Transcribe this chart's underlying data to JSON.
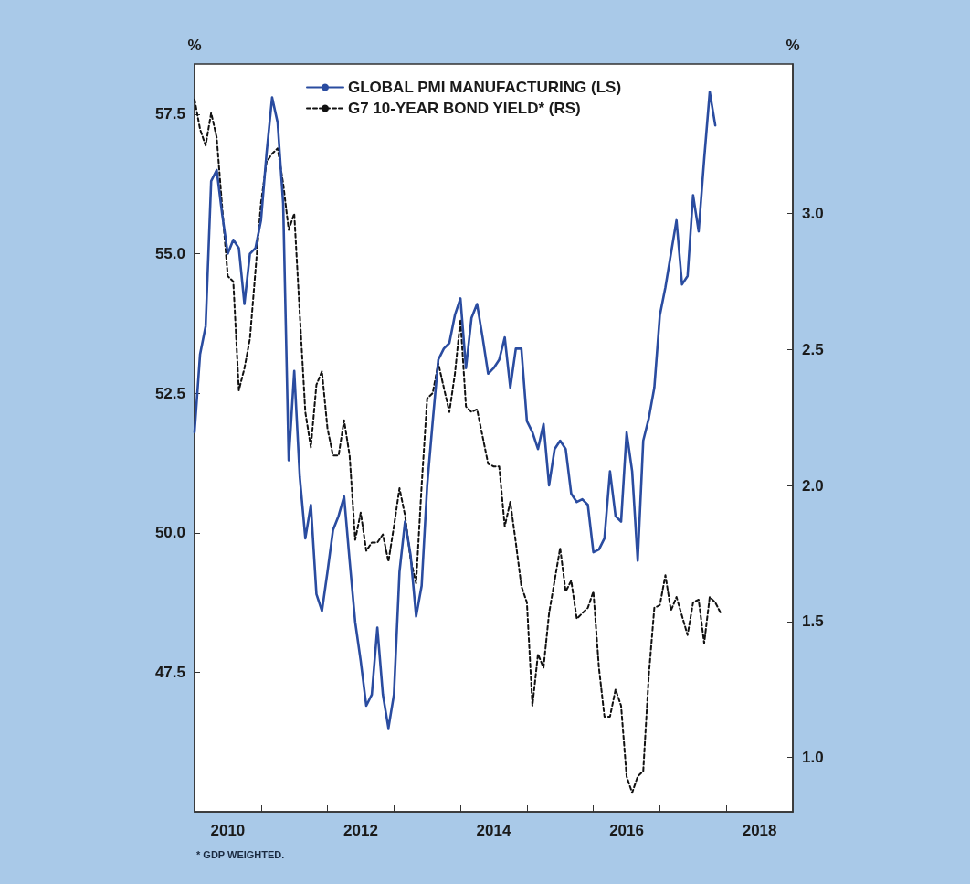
{
  "chart_data": {
    "type": "line",
    "x": [
      "2010-01",
      "2010-02",
      "2010-03",
      "2010-04",
      "2010-05",
      "2010-06",
      "2010-07",
      "2010-08",
      "2010-09",
      "2010-10",
      "2010-11",
      "2010-12",
      "2011-01",
      "2011-02",
      "2011-03",
      "2011-04",
      "2011-05",
      "2011-06",
      "2011-07",
      "2011-08",
      "2011-09",
      "2011-10",
      "2011-11",
      "2011-12",
      "2012-01",
      "2012-02",
      "2012-03",
      "2012-04",
      "2012-05",
      "2012-06",
      "2012-07",
      "2012-08",
      "2012-09",
      "2012-10",
      "2012-11",
      "2012-12",
      "2013-01",
      "2013-02",
      "2013-03",
      "2013-04",
      "2013-05",
      "2013-06",
      "2013-07",
      "2013-08",
      "2013-09",
      "2013-10",
      "2013-11",
      "2013-12",
      "2014-01",
      "2014-02",
      "2014-03",
      "2014-04",
      "2014-05",
      "2014-06",
      "2014-07",
      "2014-08",
      "2014-09",
      "2014-10",
      "2014-11",
      "2014-12",
      "2015-01",
      "2015-02",
      "2015-03",
      "2015-04",
      "2015-05",
      "2015-06",
      "2015-07",
      "2015-08",
      "2015-09",
      "2015-10",
      "2015-11",
      "2015-12",
      "2016-01",
      "2016-02",
      "2016-03",
      "2016-04",
      "2016-05",
      "2016-06",
      "2016-07",
      "2016-08",
      "2016-09",
      "2016-10",
      "2016-11",
      "2016-12",
      "2017-01",
      "2017-02",
      "2017-03",
      "2017-04",
      "2017-05",
      "2017-06",
      "2017-07",
      "2017-08",
      "2017-09",
      "2017-10",
      "2017-11",
      "2017-12"
    ],
    "series": [
      {
        "name": "GLOBAL PMI MANUFACTURING (LS)",
        "color": "#2a4ca0",
        "line_style": "solid",
        "values": [
          51.8,
          53.2,
          53.7,
          56.3,
          56.5,
          55.7,
          55.0,
          55.25,
          55.1,
          54.1,
          55.0,
          55.1,
          55.6,
          56.8,
          57.8,
          57.35,
          55.9,
          51.3,
          52.9,
          51.0,
          49.9,
          50.5,
          48.9,
          48.6,
          49.3,
          50.05,
          50.3,
          50.65,
          49.5,
          48.4,
          47.7,
          46.9,
          47.1,
          48.3,
          47.1,
          46.5,
          47.1,
          49.3,
          50.2,
          49.6,
          48.5,
          49.05,
          50.85,
          52.0,
          53.1,
          53.3,
          53.4,
          53.9,
          54.2,
          52.95,
          53.85,
          54.1,
          53.5,
          52.85,
          52.95,
          53.1,
          53.5,
          52.6,
          53.3,
          53.3,
          52.0,
          51.8,
          51.5,
          51.95,
          50.85,
          51.5,
          51.65,
          51.5,
          50.7,
          50.55,
          50.6,
          50.5,
          49.65,
          49.7,
          49.9,
          51.1,
          50.3,
          50.2,
          51.8,
          51.1,
          49.5,
          51.65,
          52.05,
          52.6,
          53.9,
          54.4,
          55.0,
          55.6,
          54.45,
          54.6,
          56.05,
          55.4,
          56.7,
          57.9,
          57.3,
          null
        ]
      },
      {
        "name": "G7 10-YEAR BOND YIELD* (RS)",
        "color": "#111111",
        "line_style": "dashed",
        "axis": "y2",
        "values": [
          3.42,
          3.31,
          3.25,
          3.37,
          3.28,
          3.02,
          2.77,
          2.75,
          2.35,
          2.43,
          2.54,
          2.79,
          3.04,
          3.19,
          3.22,
          3.24,
          3.11,
          2.94,
          3.0,
          2.63,
          2.27,
          2.14,
          2.37,
          2.42,
          2.21,
          2.11,
          2.11,
          2.24,
          2.11,
          1.8,
          1.9,
          1.76,
          1.79,
          1.79,
          1.82,
          1.72,
          1.85,
          1.99,
          1.89,
          1.73,
          1.64,
          2.0,
          2.32,
          2.34,
          2.45,
          2.36,
          2.27,
          2.41,
          2.61,
          2.29,
          2.27,
          2.28,
          2.18,
          2.08,
          2.07,
          2.07,
          1.85,
          1.94,
          1.79,
          1.63,
          1.57,
          1.19,
          1.38,
          1.33,
          1.53,
          1.65,
          1.77,
          1.61,
          1.65,
          1.51,
          1.53,
          1.55,
          1.61,
          1.33,
          1.15,
          1.15,
          1.25,
          1.19,
          0.93,
          0.87,
          0.93,
          0.95,
          1.3,
          1.55,
          1.56,
          1.67,
          1.54,
          1.59,
          1.52,
          1.45,
          1.57,
          1.58,
          1.42,
          1.59,
          1.57,
          1.53
        ]
      }
    ],
    "ylabel": "%",
    "y2label": "%",
    "xlim": [
      "2010-01",
      "2019-01"
    ],
    "xticks": [
      {
        "value": "2010-07",
        "label": "2010"
      },
      {
        "value": "2011-01",
        "label": null
      },
      {
        "value": "2012-01",
        "label": null
      },
      {
        "value": "2012-07",
        "label": "2012"
      },
      {
        "value": "2013-01",
        "label": null
      },
      {
        "value": "2014-01",
        "label": null
      },
      {
        "value": "2014-07",
        "label": "2014"
      },
      {
        "value": "2015-01",
        "label": null
      },
      {
        "value": "2016-01",
        "label": null
      },
      {
        "value": "2016-07",
        "label": "2016"
      },
      {
        "value": "2017-01",
        "label": null
      },
      {
        "value": "2018-01",
        "label": null
      },
      {
        "value": "2018-07",
        "label": "2018"
      }
    ],
    "ylim": [
      45.0,
      58.4
    ],
    "yticks": [
      {
        "value": 47.5,
        "label": "47.5"
      },
      {
        "value": 50,
        "label": "50.0"
      },
      {
        "value": 52.5,
        "label": "52.5"
      },
      {
        "value": 55,
        "label": "55.0"
      },
      {
        "value": 57.5,
        "label": "57.5"
      }
    ],
    "y2lim": [
      0.8,
      3.55
    ],
    "y2ticks": [
      {
        "value": 1,
        "label": "1.0"
      },
      {
        "value": 1.5,
        "label": "1.5"
      },
      {
        "value": 2,
        "label": "2.0"
      },
      {
        "value": 2.5,
        "label": "2.5"
      },
      {
        "value": 3,
        "label": "3.0"
      }
    ],
    "legend": "top",
    "grid": false,
    "marker": "none",
    "annotations": [
      "* GDP WEIGHTED."
    ]
  }
}
